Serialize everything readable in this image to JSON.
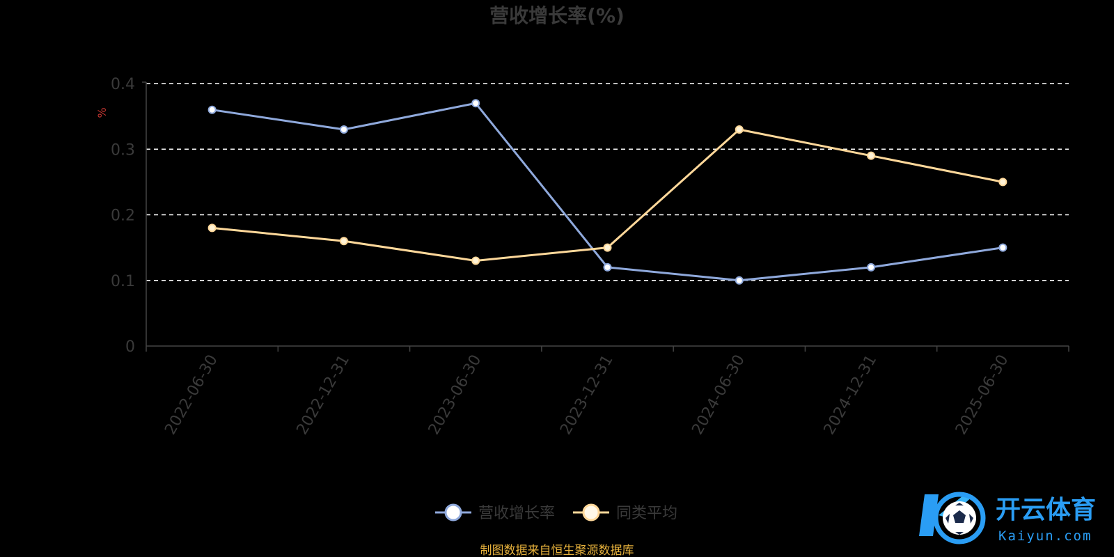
{
  "colors": {
    "background": "#000000",
    "text": "#3a3a3a",
    "grid": "#ffffff",
    "axis": "#444444",
    "unit": "#c23531",
    "source": "#e8b23c",
    "series_growth": "#8fa9dc",
    "series_average": "#ffd89a",
    "watermark_blue": "#2a9df4"
  },
  "watermark": {
    "icon": "kaiyun-soccer-logo-icon",
    "brand_cn": "开云体育",
    "brand_en": "Kaiyun.com"
  },
  "source": "制图数据来自恒生聚源数据库",
  "chart_data": {
    "type": "line",
    "title": "营收增长率(%)",
    "ylabel": "%",
    "xlabel": "",
    "ylim": [
      0,
      0.4
    ],
    "yticks": [
      "0",
      "0.1",
      "0.2",
      "0.3",
      "0.4"
    ],
    "grid": true,
    "legend_position": "bottom-center",
    "categories": [
      "2022-06-30",
      "2022-12-31",
      "2023-06-30",
      "2023-12-31",
      "2024-06-30",
      "2024-12-31",
      "2025-06-30"
    ],
    "series": [
      {
        "name": "营收增长率",
        "values": [
          0.36,
          0.33,
          0.37,
          0.12,
          0.1,
          0.12,
          0.15
        ]
      },
      {
        "name": "同类平均",
        "values": [
          0.18,
          0.16,
          0.13,
          0.15,
          0.33,
          0.29,
          0.25
        ]
      }
    ]
  }
}
